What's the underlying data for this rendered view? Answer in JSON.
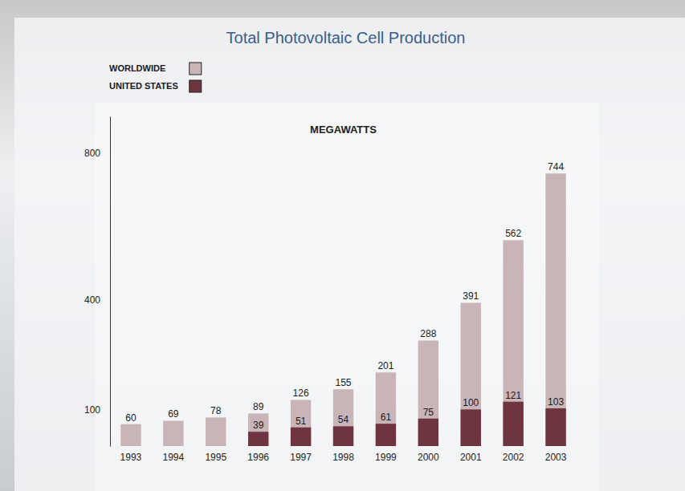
{
  "chart_data": {
    "type": "bar",
    "title": "Total Photovoltaic Cell Production",
    "ylabel": "MEGAWATTS",
    "categories": [
      "1993",
      "1994",
      "1995",
      "1996",
      "1997",
      "1998",
      "1999",
      "2000",
      "2001",
      "2002",
      "2003"
    ],
    "series": [
      {
        "name": "WORLDWIDE",
        "color": "#c9b4b7",
        "values": [
          60,
          69,
          78,
          89,
          126,
          155,
          201,
          288,
          391,
          562,
          744
        ]
      },
      {
        "name": "UNITED STATES",
        "color": "#6e3540",
        "values": [
          null,
          null,
          null,
          39,
          51,
          54,
          61,
          75,
          100,
          121,
          103
        ]
      }
    ],
    "ylim": [
      0,
      900
    ],
    "yticks": [
      100,
      400,
      800
    ],
    "stacked": false,
    "data_labels": true,
    "legend": "upper left",
    "grid": false
  }
}
